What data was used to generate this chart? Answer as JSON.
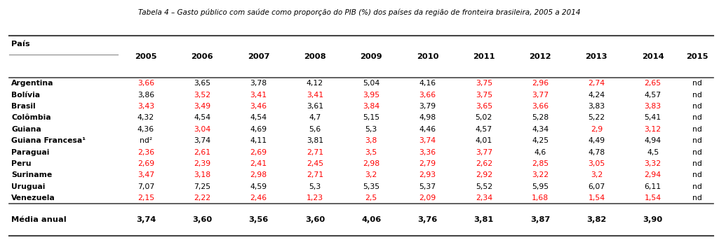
{
  "title": "Tabela 4 – Gasto público com saúde como proporção do PIB (%) dos países da região de fronteira brasileira, 2005 a 2014",
  "columns": [
    "País",
    "2005",
    "2006",
    "2007",
    "2008",
    "2009",
    "2010",
    "2011",
    "2012",
    "2013",
    "2014",
    "2015"
  ],
  "rows": [
    {
      "country": "Argentina",
      "values": [
        "3,66",
        "3,65",
        "3,78",
        "4,12",
        "5,04",
        "4,16",
        "3,75",
        "2,96",
        "2,74",
        "2,65",
        "nd"
      ],
      "colors": [
        "red",
        "black",
        "black",
        "black",
        "black",
        "black",
        "red",
        "red",
        "red",
        "red",
        "black"
      ]
    },
    {
      "country": "Bolívia",
      "values": [
        "3,86",
        "3,52",
        "3,41",
        "3,41",
        "3,95",
        "3,66",
        "3,75",
        "3,77",
        "4,24",
        "4,57",
        "nd"
      ],
      "colors": [
        "black",
        "red",
        "red",
        "red",
        "red",
        "red",
        "red",
        "red",
        "black",
        "black",
        "black"
      ]
    },
    {
      "country": "Brasil",
      "values": [
        "3,43",
        "3,49",
        "3,46",
        "3,61",
        "3,84",
        "3,79",
        "3,65",
        "3,66",
        "3,83",
        "3,83",
        "nd"
      ],
      "colors": [
        "red",
        "red",
        "red",
        "black",
        "red",
        "black",
        "red",
        "red",
        "black",
        "red",
        "black"
      ]
    },
    {
      "country": "Colômbia",
      "values": [
        "4,32",
        "4,54",
        "4,54",
        "4,7",
        "5,15",
        "4,98",
        "5,02",
        "5,28",
        "5,22",
        "5,41",
        "nd"
      ],
      "colors": [
        "black",
        "black",
        "black",
        "black",
        "black",
        "black",
        "black",
        "black",
        "black",
        "black",
        "black"
      ]
    },
    {
      "country": "Guiana",
      "values": [
        "4,36",
        "3,04",
        "4,69",
        "5,6",
        "5,3",
        "4,46",
        "4,57",
        "4,34",
        "2,9",
        "3,12",
        "nd"
      ],
      "colors": [
        "black",
        "red",
        "black",
        "black",
        "black",
        "black",
        "black",
        "black",
        "red",
        "red",
        "black"
      ]
    },
    {
      "country": "Guiana Francesa¹",
      "values": [
        "nd²",
        "3,74",
        "4,11",
        "3,81",
        "3,8",
        "3,74",
        "4,01",
        "4,25",
        "4,49",
        "4,94",
        "nd"
      ],
      "colors": [
        "black",
        "black",
        "black",
        "black",
        "red",
        "red",
        "black",
        "black",
        "black",
        "black",
        "black"
      ]
    },
    {
      "country": "Paraguai",
      "values": [
        "2,36",
        "2,61",
        "2,69",
        "2,71",
        "3,5",
        "3,36",
        "3,77",
        "4,6",
        "4,78",
        "4,5",
        "nd"
      ],
      "colors": [
        "red",
        "red",
        "red",
        "red",
        "red",
        "red",
        "red",
        "black",
        "black",
        "black",
        "black"
      ]
    },
    {
      "country": "Peru",
      "values": [
        "2,69",
        "2,39",
        "2,41",
        "2,45",
        "2,98",
        "2,79",
        "2,62",
        "2,85",
        "3,05",
        "3,32",
        "nd"
      ],
      "colors": [
        "red",
        "red",
        "red",
        "red",
        "red",
        "red",
        "red",
        "red",
        "red",
        "red",
        "black"
      ]
    },
    {
      "country": "Suriname",
      "values": [
        "3,47",
        "3,18",
        "2,98",
        "2,71",
        "3,2",
        "2,93",
        "2,92",
        "3,22",
        "3,2",
        "2,94",
        "nd"
      ],
      "colors": [
        "red",
        "red",
        "red",
        "red",
        "red",
        "red",
        "red",
        "red",
        "red",
        "red",
        "black"
      ]
    },
    {
      "country": "Uruguai",
      "values": [
        "7,07",
        "7,25",
        "4,59",
        "5,3",
        "5,35",
        "5,37",
        "5,52",
        "5,95",
        "6,07",
        "6,11",
        "nd"
      ],
      "colors": [
        "black",
        "black",
        "black",
        "black",
        "black",
        "black",
        "black",
        "black",
        "black",
        "black",
        "black"
      ]
    },
    {
      "country": "Venezuela",
      "values": [
        "2,15",
        "2,22",
        "2,46",
        "1,23",
        "2,5",
        "2,09",
        "2,34",
        "1,68",
        "1,54",
        "1,54",
        "nd"
      ],
      "colors": [
        "red",
        "red",
        "red",
        "red",
        "red",
        "red",
        "red",
        "red",
        "red",
        "red",
        "black"
      ]
    }
  ],
  "footer": {
    "label": "Média anual",
    "values": [
      "3,74",
      "3,60",
      "3,56",
      "3,60",
      "4,06",
      "3,76",
      "3,81",
      "3,87",
      "3,82",
      "3,90",
      ""
    ],
    "colors": [
      "black",
      "black",
      "black",
      "black",
      "black",
      "black",
      "black",
      "black",
      "black",
      "black",
      "black"
    ]
  },
  "bg_color": "white",
  "line_color_thick": "#444444",
  "line_color_thin": "#888888"
}
